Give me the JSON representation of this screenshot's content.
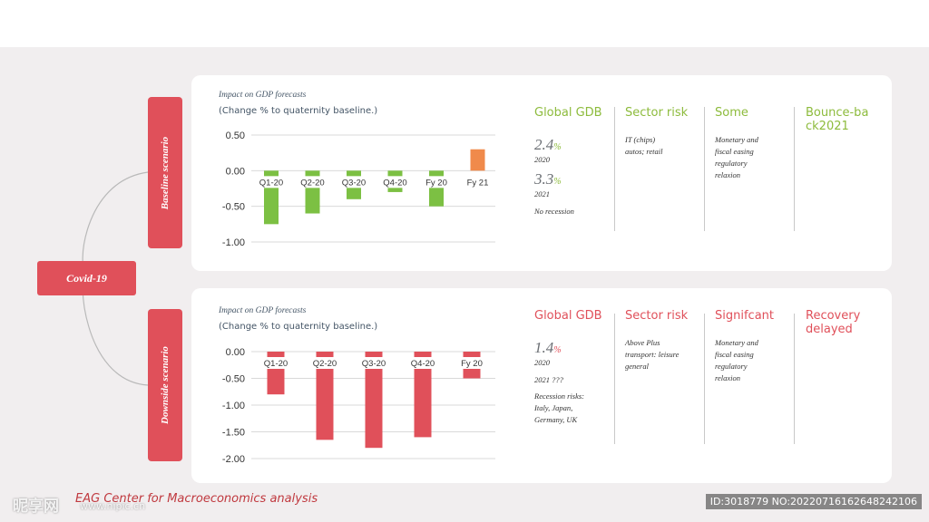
{
  "covid_label": "Covid-19",
  "footer_text": "EAG Center for Macroeconomics analysis",
  "watermark_left": "昵享网",
  "watermark_url": "www.nipic.cn",
  "watermark_id": "ID:3018779 NO:20220716162648242106",
  "colors": {
    "red": "#e0505a",
    "green": "#7cc043",
    "orange": "#f08a4b",
    "accent_green": "#8dbb3c"
  },
  "scenarios": [
    {
      "label": "Baseline scenario",
      "chart_title": "Impact on GDP forecasts",
      "chart_subtitle": "(Change % to quaternity baseline.)",
      "col1": {
        "head": "Global GDB",
        "v1": "2.4",
        "p1": "%",
        "y1": "2020",
        "v2": "3.3",
        "p2": "%",
        "y2": "2021",
        "note": "No recession"
      },
      "col2": {
        "head": "Sector risk",
        "l1": "IT (chips)",
        "l2": "autos; retail"
      },
      "col3": {
        "head": "Some",
        "l1": "Monetary and",
        "l2": "fiscal easing",
        "l3": "regulatory",
        "l4": "relaxion"
      },
      "col4": {
        "head": "Bounce-back2021"
      }
    },
    {
      "label": "Downside scenario",
      "chart_title": "Impact on GDP forecasts",
      "chart_subtitle": "(Change % to quaternity baseline.)",
      "col1": {
        "head": "Global GDB",
        "v1": "1.4",
        "p1": "%",
        "y1": "2020",
        "y2": "2021 ???",
        "l1": "Recession risks:",
        "l2": "Italy, Japan,",
        "l3": "Germany, UK"
      },
      "col2": {
        "head": "Sector risk",
        "l1": "Above Plus",
        "l2": "transport: leisure",
        "l3": "general"
      },
      "col3": {
        "head": "Signifcant",
        "l1": "Monetary and",
        "l2": "fiscal easing",
        "l3": "regulatory",
        "l4": "relaxion"
      },
      "col4": {
        "head": "Recovery delayed"
      }
    }
  ],
  "chart_data": [
    {
      "type": "bar",
      "title": "Impact on GDP forecasts",
      "subtitle": "(Change % to quaternity baseline.)",
      "categories": [
        "Q1-20",
        "Q2-20",
        "Q3-20",
        "Q4-20",
        "Fy 20",
        "Fy 21"
      ],
      "values": [
        -0.75,
        -0.6,
        -0.4,
        -0.3,
        -0.5,
        0.3
      ],
      "bar_colors": [
        "#7cc043",
        "#7cc043",
        "#7cc043",
        "#7cc043",
        "#7cc043",
        "#f08a4b"
      ],
      "yticks": [
        "0.50",
        "0.00",
        "-0.50",
        "-1.00"
      ],
      "ylim": [
        -1.0,
        0.5
      ],
      "grid": true
    },
    {
      "type": "bar",
      "title": "Impact on GDP forecasts",
      "subtitle": "(Change % to quaternity baseline.)",
      "categories": [
        "Q1-20",
        "Q2-20",
        "Q3-20",
        "Q4-20",
        "Fy 20"
      ],
      "values": [
        -0.8,
        -1.65,
        -1.8,
        -1.6,
        -0.5
      ],
      "bar_colors": [
        "#e0505a",
        "#e0505a",
        "#e0505a",
        "#e0505a",
        "#e0505a"
      ],
      "yticks": [
        "0.00",
        "-0.50",
        "-1.00",
        "-1.50",
        "-2.00"
      ],
      "ylim": [
        -2.0,
        0.0
      ],
      "grid": true
    }
  ]
}
